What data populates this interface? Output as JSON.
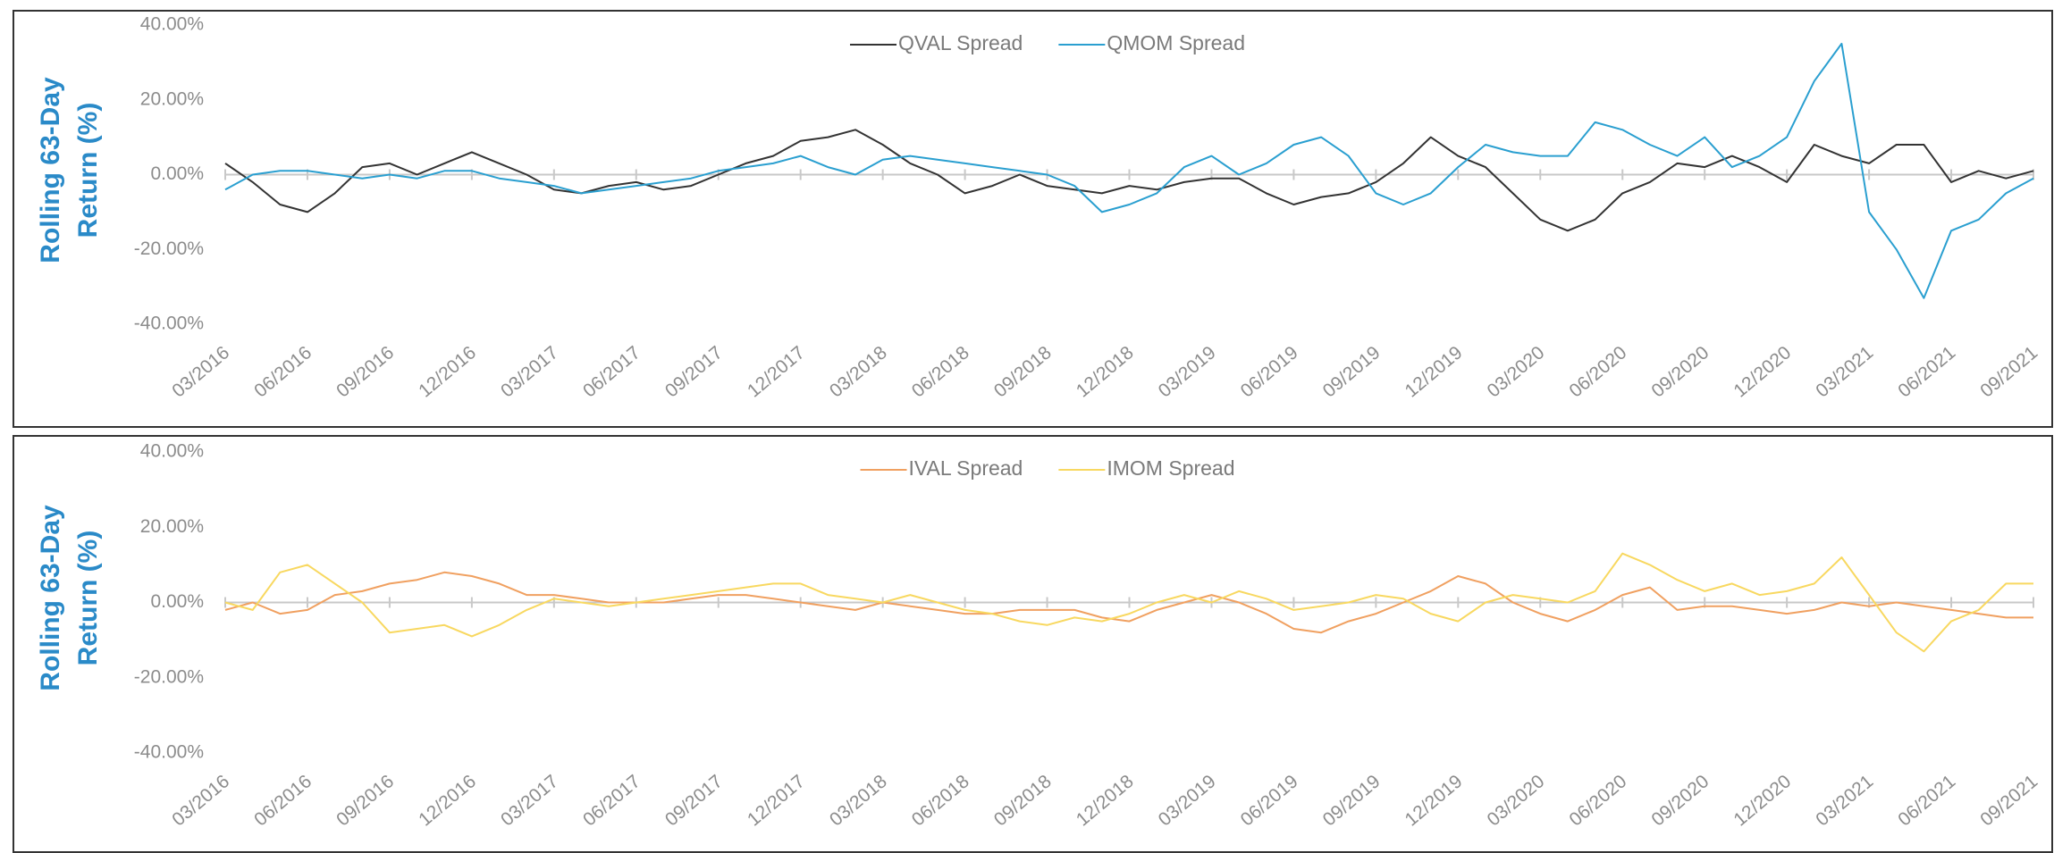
{
  "chart_data": [
    {
      "type": "line",
      "ylabel": [
        "Rolling 63-Day",
        "Return (%)"
      ],
      "categories": [
        "03/2016",
        null,
        null,
        "06/2016",
        null,
        null,
        "09/2016",
        null,
        null,
        "12/2016",
        null,
        null,
        "03/2017",
        null,
        null,
        "06/2017",
        null,
        null,
        "09/2017",
        null,
        null,
        "12/2017",
        null,
        null,
        "03/2018",
        null,
        null,
        "06/2018",
        null,
        null,
        "09/2018",
        null,
        null,
        "12/2018",
        null,
        null,
        "03/2019",
        null,
        null,
        "06/2019",
        null,
        null,
        "09/2019",
        null,
        null,
        "12/2019",
        null,
        null,
        "03/2020",
        null,
        null,
        "06/2020",
        null,
        null,
        "09/2020",
        null,
        null,
        "12/2020",
        null,
        null,
        "03/2021",
        null,
        null,
        "06/2021",
        null,
        null,
        "09/2021"
      ],
      "series": [
        {
          "name": "QVAL Spread",
          "color": "#333333",
          "values": [
            3,
            -2,
            -8,
            -10,
            -5,
            2,
            3,
            0,
            3,
            6,
            3,
            0,
            -4,
            -5,
            -3,
            -2,
            -4,
            -3,
            0,
            3,
            5,
            9,
            10,
            12,
            8,
            3,
            0,
            -5,
            -3,
            0,
            -3,
            -4,
            -5,
            -3,
            -4,
            -2,
            -1,
            -1,
            -5,
            -8,
            -6,
            -5,
            -2,
            3,
            10,
            5,
            2,
            -5,
            -12,
            -15,
            -12,
            -5,
            -2,
            3,
            2,
            5,
            2,
            -2,
            8,
            5,
            3,
            8,
            8,
            -2,
            1,
            -1,
            1
          ]
        },
        {
          "name": "QMOM Spread",
          "color": "#2a9fd0",
          "values": [
            -4,
            0,
            1,
            1,
            0,
            -1,
            0,
            -1,
            1,
            1,
            -1,
            -2,
            -3,
            -5,
            -4,
            -3,
            -2,
            -1,
            1,
            2,
            3,
            5,
            2,
            0,
            4,
            5,
            4,
            3,
            2,
            1,
            0,
            -3,
            -10,
            -8,
            -5,
            2,
            5,
            0,
            3,
            8,
            10,
            5,
            -5,
            -8,
            -5,
            2,
            8,
            6,
            5,
            5,
            14,
            12,
            8,
            5,
            10,
            2,
            5,
            10,
            25,
            35,
            -10,
            -20,
            -33,
            -15,
            -12,
            -5,
            -1
          ]
        }
      ],
      "ylim": [
        -40,
        40
      ],
      "yticks": [
        {
          "value": -40,
          "label": "-40.00%"
        },
        {
          "value": -20,
          "label": "-20.00%"
        },
        {
          "value": 0,
          "label": "0.00%"
        },
        {
          "value": 20,
          "label": "20.00%"
        },
        {
          "value": 40,
          "label": "40.00%"
        }
      ],
      "legend": "top"
    },
    {
      "type": "line",
      "ylabel": [
        "Rolling 63-Day",
        "Return (%)"
      ],
      "categories": [
        "03/2016",
        null,
        null,
        "06/2016",
        null,
        null,
        "09/2016",
        null,
        null,
        "12/2016",
        null,
        null,
        "03/2017",
        null,
        null,
        "06/2017",
        null,
        null,
        "09/2017",
        null,
        null,
        "12/2017",
        null,
        null,
        "03/2018",
        null,
        null,
        "06/2018",
        null,
        null,
        "09/2018",
        null,
        null,
        "12/2018",
        null,
        null,
        "03/2019",
        null,
        null,
        "06/2019",
        null,
        null,
        "09/2019",
        null,
        null,
        "12/2019",
        null,
        null,
        "03/2020",
        null,
        null,
        "06/2020",
        null,
        null,
        "09/2020",
        null,
        null,
        "12/2020",
        null,
        null,
        "03/2021",
        null,
        null,
        "06/2021",
        null,
        null,
        "09/2021"
      ],
      "series": [
        {
          "name": "IVAL Spread",
          "color": "#f0a060",
          "values": [
            -2,
            0,
            -3,
            -2,
            2,
            3,
            5,
            6,
            8,
            7,
            5,
            2,
            2,
            1,
            0,
            0,
            0,
            1,
            2,
            2,
            1,
            0,
            -1,
            -2,
            0,
            -1,
            -2,
            -3,
            -3,
            -2,
            -2,
            -2,
            -4,
            -5,
            -2,
            0,
            2,
            0,
            -3,
            -7,
            -8,
            -5,
            -3,
            0,
            3,
            7,
            5,
            0,
            -3,
            -5,
            -2,
            2,
            4,
            -2,
            -1,
            -1,
            -2,
            -3,
            -2,
            0,
            -1,
            0,
            -1,
            -2,
            -3,
            -4,
            -4
          ]
        },
        {
          "name": "IMOM Spread",
          "color": "#f8d860",
          "values": [
            0,
            -2,
            8,
            10,
            5,
            0,
            -8,
            -7,
            -6,
            -9,
            -6,
            -2,
            1,
            0,
            -1,
            0,
            1,
            2,
            3,
            4,
            5,
            5,
            2,
            1,
            0,
            2,
            0,
            -2,
            -3,
            -5,
            -6,
            -4,
            -5,
            -3,
            0,
            2,
            0,
            3,
            1,
            -2,
            -1,
            0,
            2,
            1,
            -3,
            -5,
            0,
            2,
            1,
            0,
            3,
            13,
            10,
            6,
            3,
            5,
            2,
            3,
            5,
            12,
            2,
            -8,
            -13,
            -5,
            -2,
            5,
            5
          ]
        }
      ],
      "ylim": [
        -40,
        40
      ],
      "yticks": [
        {
          "value": -40,
          "label": "-40.00%"
        },
        {
          "value": -20,
          "label": "-20.00%"
        },
        {
          "value": 0,
          "label": "0.00%"
        },
        {
          "value": 20,
          "label": "20.00%"
        },
        {
          "value": 40,
          "label": "40.00%"
        }
      ],
      "legend": "top"
    }
  ]
}
